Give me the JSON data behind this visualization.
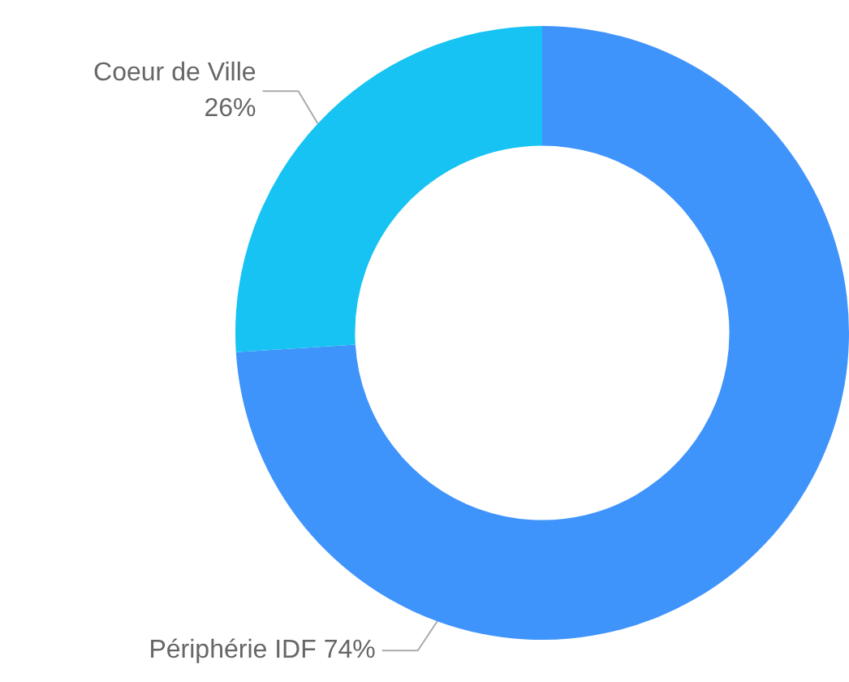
{
  "chart_data": {
    "type": "donut",
    "categories": [
      "Périphérie IDF",
      "Coeur de Ville"
    ],
    "values": [
      74,
      26
    ],
    "colors": [
      "#3f94fc",
      "#17c3f2"
    ],
    "value_labels": [
      "74%",
      "26%"
    ],
    "legend": false
  }
}
